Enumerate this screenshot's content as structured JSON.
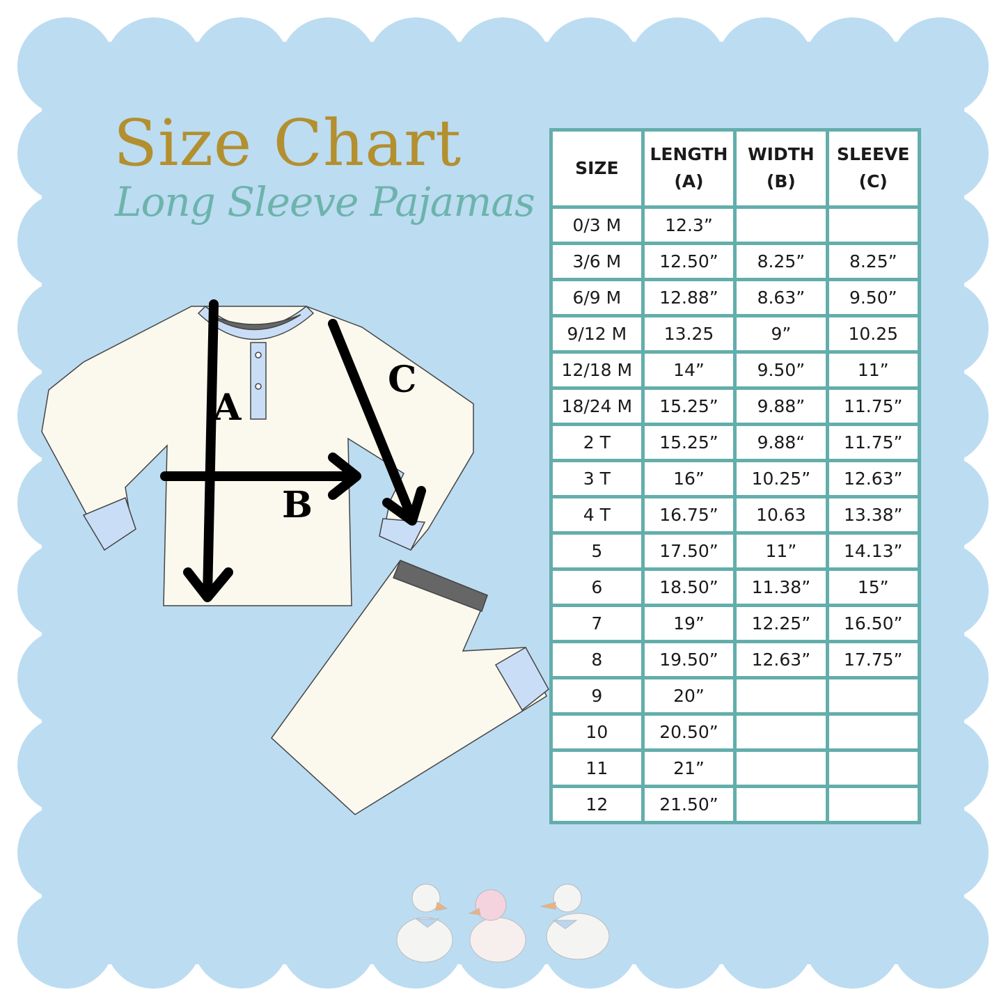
{
  "title": "Size Chart",
  "subtitle": "Long Sleeve Pajamas",
  "colors": {
    "background_scallop": "#bcdcf1",
    "title": "#b38f2f",
    "subtitle": "#6db3ad",
    "table_border": "#63aeab"
  },
  "measure_labels": {
    "a": "A",
    "b": "B",
    "c": "C"
  },
  "table": {
    "headers": [
      "SIZE",
      "LENGTH (A)",
      "WIDTH (B)",
      "SLEEVE (C)"
    ],
    "rows": [
      [
        "0/3 M",
        "12.3”",
        "",
        ""
      ],
      [
        "3/6 M",
        "12.50”",
        "8.25”",
        "8.25”"
      ],
      [
        "6/9 M",
        "12.88”",
        "8.63”",
        "9.50”"
      ],
      [
        "9/12 M",
        "13.25",
        "9”",
        "10.25"
      ],
      [
        "12/18 M",
        "14”",
        "9.50”",
        "11”"
      ],
      [
        "18/24 M",
        "15.25”",
        "9.88”",
        "11.75”"
      ],
      [
        "2 T",
        "15.25”",
        "9.88“",
        "11.75”"
      ],
      [
        "3 T",
        "16”",
        "10.25”",
        "12.63”"
      ],
      [
        "4 T",
        "16.75”",
        "10.63",
        "13.38”"
      ],
      [
        "5",
        "17.50”",
        "11”",
        "14.13”"
      ],
      [
        "6",
        "18.50”",
        "11.38”",
        "15”"
      ],
      [
        "7",
        "19”",
        "12.25”",
        "16.50”"
      ],
      [
        "8",
        "19.50”",
        "12.63”",
        "17.75”"
      ],
      [
        "9",
        "20”",
        "",
        ""
      ],
      [
        "10",
        "20.50”",
        "",
        ""
      ],
      [
        "11",
        "21”",
        "",
        ""
      ],
      [
        "12",
        "21.50”",
        "",
        ""
      ]
    ]
  }
}
